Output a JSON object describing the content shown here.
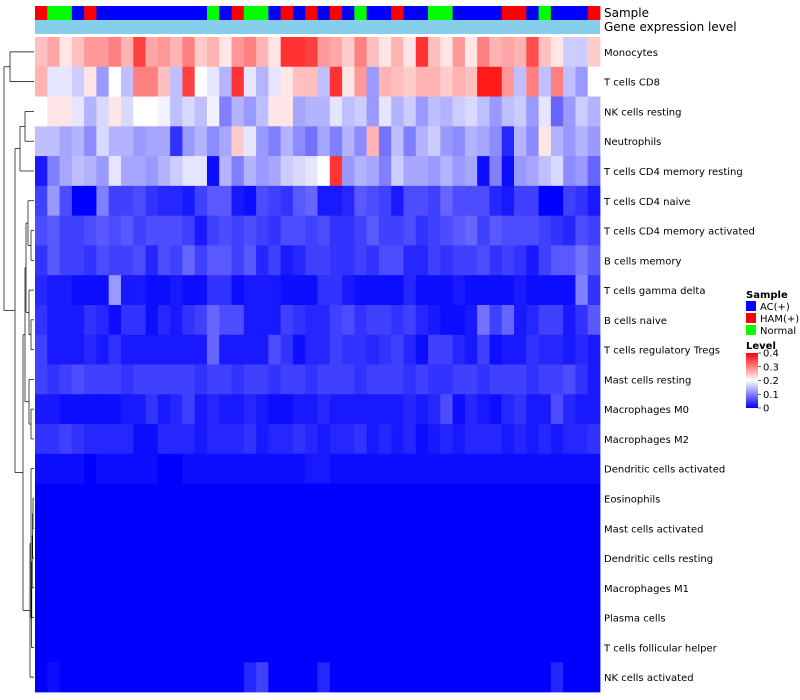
{
  "chart_data": {
    "type": "heatmap",
    "annotation_labels": [
      "Sample",
      "Gene expression level"
    ],
    "sample_groups": [
      "AC(+)",
      "HAM(+)",
      "Normal"
    ],
    "sample_colors": {
      "AC(+)": "#0000ff",
      "HAM(+)": "#ff0000",
      "Normal": "#00ff00"
    },
    "gene_expression_color": "#87ceeb",
    "samples": [
      "HAM(+)",
      "Normal",
      "Normal",
      "AC(+)",
      "HAM(+)",
      "AC(+)",
      "AC(+)",
      "AC(+)",
      "AC(+)",
      "AC(+)",
      "AC(+)",
      "AC(+)",
      "AC(+)",
      "AC(+)",
      "Normal",
      "AC(+)",
      "HAM(+)",
      "Normal",
      "Normal",
      "AC(+)",
      "HAM(+)",
      "AC(+)",
      "HAM(+)",
      "AC(+)",
      "HAM(+)",
      "AC(+)",
      "Normal",
      "AC(+)",
      "AC(+)",
      "HAM(+)",
      "AC(+)",
      "AC(+)",
      "Normal",
      "Normal",
      "AC(+)",
      "AC(+)",
      "AC(+)",
      "AC(+)",
      "HAM(+)",
      "HAM(+)",
      "AC(+)",
      "Normal",
      "AC(+)",
      "AC(+)",
      "AC(+)",
      "HAM(+)"
    ],
    "rows": [
      "Monocytes",
      "T cells CD8",
      "NK cells resting",
      "Neutrophils",
      "T cells CD4 memory resting",
      "T cells CD4 naive",
      "T cells CD4 memory activated",
      "B cells memory",
      "T cells gamma delta",
      "B cells naive",
      "T cells regulatory  Tregs",
      "Mast cells resting",
      "Macrophages M0",
      "Macrophages M2",
      "Dendritic cells activated",
      "Eosinophils",
      "Mast cells activated",
      "Dendritic cells resting",
      "Macrophages M1",
      "Plasma cells",
      "T cells follicular helper",
      "NK cells activated"
    ],
    "values": [
      [
        0.25,
        0.27,
        0.22,
        0.25,
        0.28,
        0.28,
        0.3,
        0.26,
        0.35,
        0.27,
        0.28,
        0.26,
        0.3,
        0.24,
        0.26,
        0.22,
        0.28,
        0.3,
        0.26,
        0.22,
        0.36,
        0.36,
        0.35,
        0.28,
        0.27,
        0.24,
        0.3,
        0.25,
        0.22,
        0.26,
        0.22,
        0.36,
        0.25,
        0.22,
        0.28,
        0.22,
        0.3,
        0.26,
        0.27,
        0.26,
        0.34,
        0.25,
        0.22,
        0.16,
        0.16,
        0.24
      ],
      [
        0.26,
        0.18,
        0.18,
        0.16,
        0.22,
        0.12,
        0.2,
        0.15,
        0.3,
        0.3,
        0.25,
        0.15,
        0.35,
        0.2,
        0.18,
        0.14,
        0.36,
        0.18,
        0.14,
        0.18,
        0.22,
        0.25,
        0.25,
        0.15,
        0.36,
        0.22,
        0.28,
        0.12,
        0.26,
        0.25,
        0.24,
        0.26,
        0.26,
        0.24,
        0.26,
        0.25,
        0.38,
        0.38,
        0.28,
        0.15,
        0.3,
        0.15,
        0.3,
        0.15,
        0.12,
        0.2
      ],
      [
        0.2,
        0.22,
        0.22,
        0.18,
        0.14,
        0.17,
        0.22,
        0.17,
        0.2,
        0.2,
        0.19,
        0.15,
        0.17,
        0.15,
        0.19,
        0.1,
        0.14,
        0.12,
        0.15,
        0.22,
        0.22,
        0.13,
        0.14,
        0.14,
        0.18,
        0.15,
        0.16,
        0.12,
        0.18,
        0.14,
        0.16,
        0.12,
        0.15,
        0.14,
        0.16,
        0.17,
        0.15,
        0.12,
        0.15,
        0.16,
        0.12,
        0.18,
        0.08,
        0.12,
        0.16,
        0.14
      ],
      [
        0.15,
        0.15,
        0.13,
        0.14,
        0.11,
        0.17,
        0.14,
        0.14,
        0.12,
        0.13,
        0.13,
        0.04,
        0.12,
        0.14,
        0.11,
        0.13,
        0.24,
        0.18,
        0.12,
        0.1,
        0.14,
        0.11,
        0.09,
        0.13,
        0.1,
        0.14,
        0.11,
        0.26,
        0.09,
        0.15,
        0.1,
        0.14,
        0.16,
        0.12,
        0.11,
        0.14,
        0.13,
        0.11,
        0.03,
        0.14,
        0.11,
        0.22,
        0.14,
        0.12,
        0.14,
        0.12
      ],
      [
        0.02,
        0.1,
        0.13,
        0.15,
        0.14,
        0.12,
        0.18,
        0.13,
        0.13,
        0.12,
        0.14,
        0.16,
        0.18,
        0.18,
        0.01,
        0.14,
        0.1,
        0.14,
        0.12,
        0.13,
        0.16,
        0.17,
        0.18,
        0.2,
        0.36,
        0.12,
        0.14,
        0.13,
        0.1,
        0.16,
        0.13,
        0.13,
        0.12,
        0.14,
        0.12,
        0.13,
        0.01,
        0.1,
        0.01,
        0.12,
        0.13,
        0.15,
        0.17,
        0.11,
        0.12,
        0.08
      ],
      [
        0.05,
        0.12,
        0.06,
        0.0,
        0.0,
        0.1,
        0.05,
        0.05,
        0.06,
        0.04,
        0.03,
        0.03,
        0.02,
        0.05,
        0.07,
        0.07,
        0.02,
        0.01,
        0.06,
        0.05,
        0.04,
        0.07,
        0.08,
        0.02,
        0.02,
        0.03,
        0.07,
        0.06,
        0.05,
        0.02,
        0.06,
        0.06,
        0.05,
        0.08,
        0.06,
        0.06,
        0.06,
        0.03,
        0.02,
        0.05,
        0.05,
        0.0,
        0.0,
        0.05,
        0.04,
        0.02
      ],
      [
        0.06,
        0.07,
        0.05,
        0.05,
        0.06,
        0.07,
        0.06,
        0.07,
        0.05,
        0.06,
        0.06,
        0.06,
        0.05,
        0.02,
        0.05,
        0.06,
        0.05,
        0.06,
        0.05,
        0.04,
        0.06,
        0.06,
        0.05,
        0.06,
        0.04,
        0.04,
        0.05,
        0.07,
        0.05,
        0.05,
        0.06,
        0.04,
        0.05,
        0.06,
        0.07,
        0.08,
        0.05,
        0.07,
        0.06,
        0.06,
        0.06,
        0.05,
        0.04,
        0.03,
        0.06,
        0.05
      ],
      [
        0.04,
        0.07,
        0.05,
        0.05,
        0.04,
        0.06,
        0.05,
        0.05,
        0.06,
        0.03,
        0.06,
        0.05,
        0.08,
        0.05,
        0.07,
        0.07,
        0.05,
        0.07,
        0.03,
        0.05,
        0.02,
        0.03,
        0.05,
        0.05,
        0.04,
        0.04,
        0.05,
        0.04,
        0.06,
        0.06,
        0.03,
        0.03,
        0.05,
        0.04,
        0.05,
        0.05,
        0.06,
        0.04,
        0.05,
        0.04,
        0.02,
        0.05,
        0.07,
        0.07,
        0.09,
        0.07
      ],
      [
        0.03,
        0.02,
        0.02,
        0.01,
        0.01,
        0.01,
        0.12,
        0.02,
        0.02,
        0.01,
        0.01,
        0.02,
        0.01,
        0.01,
        0.04,
        0.04,
        0.01,
        0.02,
        0.02,
        0.02,
        0.01,
        0.01,
        0.01,
        0.04,
        0.04,
        0.02,
        0.01,
        0.01,
        0.01,
        0.01,
        0.03,
        0.01,
        0.01,
        0.01,
        0.02,
        0.01,
        0.01,
        0.01,
        0.01,
        0.02,
        0.01,
        0.01,
        0.01,
        0.01,
        0.1,
        0.04
      ],
      [
        0.04,
        0.02,
        0.02,
        0.02,
        0.04,
        0.03,
        0.01,
        0.04,
        0.04,
        0.01,
        0.03,
        0.02,
        0.04,
        0.05,
        0.08,
        0.06,
        0.06,
        0.02,
        0.02,
        0.02,
        0.05,
        0.04,
        0.03,
        0.03,
        0.05,
        0.06,
        0.04,
        0.05,
        0.05,
        0.04,
        0.05,
        0.03,
        0.02,
        0.01,
        0.01,
        0.02,
        0.09,
        0.05,
        0.08,
        0.02,
        0.03,
        0.05,
        0.05,
        0.02,
        0.04,
        0.07
      ],
      [
        0.05,
        0.02,
        0.02,
        0.02,
        0.03,
        0.02,
        0.04,
        0.02,
        0.02,
        0.02,
        0.02,
        0.02,
        0.02,
        0.02,
        0.08,
        0.02,
        0.02,
        0.02,
        0.02,
        0.06,
        0.04,
        0.01,
        0.03,
        0.03,
        0.05,
        0.04,
        0.04,
        0.03,
        0.04,
        0.05,
        0.03,
        0.01,
        0.05,
        0.05,
        0.03,
        0.02,
        0.05,
        0.01,
        0.02,
        0.02,
        0.04,
        0.03,
        0.03,
        0.02,
        0.03,
        0.02
      ],
      [
        0.05,
        0.04,
        0.05,
        0.06,
        0.05,
        0.05,
        0.05,
        0.04,
        0.05,
        0.05,
        0.05,
        0.05,
        0.05,
        0.04,
        0.05,
        0.05,
        0.04,
        0.05,
        0.05,
        0.04,
        0.05,
        0.05,
        0.04,
        0.05,
        0.05,
        0.05,
        0.04,
        0.05,
        0.05,
        0.05,
        0.04,
        0.05,
        0.04,
        0.04,
        0.05,
        0.05,
        0.04,
        0.05,
        0.05,
        0.05,
        0.04,
        0.05,
        0.05,
        0.06,
        0.04,
        0.02
      ],
      [
        0.02,
        0.02,
        0.01,
        0.01,
        0.01,
        0.01,
        0.01,
        0.02,
        0.02,
        0.04,
        0.02,
        0.03,
        0.05,
        0.02,
        0.03,
        0.02,
        0.02,
        0.03,
        0.02,
        0.01,
        0.01,
        0.02,
        0.02,
        0.03,
        0.02,
        0.02,
        0.02,
        0.02,
        0.02,
        0.02,
        0.03,
        0.02,
        0.03,
        0.06,
        0.01,
        0.03,
        0.02,
        0.01,
        0.03,
        0.04,
        0.02,
        0.02,
        0.06,
        0.03,
        0.02,
        0.02
      ],
      [
        0.04,
        0.04,
        0.05,
        0.04,
        0.03,
        0.03,
        0.03,
        0.03,
        0.01,
        0.01,
        0.03,
        0.03,
        0.03,
        0.02,
        0.03,
        0.03,
        0.03,
        0.04,
        0.02,
        0.03,
        0.03,
        0.04,
        0.03,
        0.02,
        0.03,
        0.03,
        0.04,
        0.02,
        0.03,
        0.02,
        0.03,
        0.01,
        0.02,
        0.03,
        0.02,
        0.03,
        0.03,
        0.03,
        0.02,
        0.03,
        0.02,
        0.03,
        0.02,
        0.03,
        0.03,
        0.04
      ],
      [
        0.01,
        0.01,
        0.01,
        0.01,
        0.0,
        0.01,
        0.01,
        0.01,
        0.01,
        0.01,
        0.0,
        0.0,
        0.01,
        0.01,
        0.01,
        0.01,
        0.01,
        0.01,
        0.01,
        0.01,
        0.01,
        0.01,
        0.02,
        0.02,
        0.01,
        0.01,
        0.01,
        0.01,
        0.01,
        0.01,
        0.01,
        0.01,
        0.01,
        0.01,
        0.01,
        0.01,
        0.01,
        0.01,
        0.01,
        0.01,
        0.01,
        0.01,
        0.01,
        0.01,
        0.01,
        0.01
      ],
      [
        0.0,
        0.0,
        0.0,
        0.0,
        0.0,
        0.0,
        0.0,
        0.0,
        0.0,
        0.0,
        0.0,
        0.0,
        0.0,
        0.0,
        0.0,
        0.0,
        0.0,
        0.0,
        0.0,
        0.0,
        0.0,
        0.0,
        0.0,
        0.0,
        0.0,
        0.0,
        0.0,
        0.0,
        0.0,
        0.0,
        0.0,
        0.0,
        0.0,
        0.0,
        0.0,
        0.0,
        0.0,
        0.0,
        0.0,
        0.0,
        0.0,
        0.0,
        0.0,
        0.0,
        0.0,
        0.0
      ],
      [
        0.0,
        0.0,
        0.0,
        0.0,
        0.0,
        0.0,
        0.0,
        0.0,
        0.0,
        0.0,
        0.0,
        0.0,
        0.0,
        0.0,
        0.0,
        0.0,
        0.0,
        0.0,
        0.0,
        0.0,
        0.0,
        0.0,
        0.0,
        0.0,
        0.0,
        0.0,
        0.0,
        0.0,
        0.0,
        0.0,
        0.0,
        0.0,
        0.0,
        0.0,
        0.0,
        0.0,
        0.0,
        0.0,
        0.0,
        0.0,
        0.0,
        0.0,
        0.0,
        0.0,
        0.0,
        0.0
      ],
      [
        0.0,
        0.0,
        0.0,
        0.0,
        0.0,
        0.0,
        0.0,
        0.0,
        0.0,
        0.0,
        0.0,
        0.0,
        0.0,
        0.0,
        0.0,
        0.0,
        0.0,
        0.0,
        0.0,
        0.0,
        0.0,
        0.0,
        0.0,
        0.0,
        0.0,
        0.0,
        0.0,
        0.0,
        0.0,
        0.0,
        0.0,
        0.0,
        0.0,
        0.0,
        0.0,
        0.0,
        0.0,
        0.0,
        0.0,
        0.0,
        0.0,
        0.0,
        0.0,
        0.0,
        0.0,
        0.0
      ],
      [
        0.0,
        0.0,
        0.0,
        0.0,
        0.0,
        0.0,
        0.0,
        0.0,
        0.0,
        0.0,
        0.0,
        0.0,
        0.0,
        0.0,
        0.0,
        0.0,
        0.0,
        0.0,
        0.0,
        0.0,
        0.0,
        0.0,
        0.0,
        0.0,
        0.0,
        0.0,
        0.0,
        0.0,
        0.0,
        0.0,
        0.0,
        0.0,
        0.0,
        0.0,
        0.0,
        0.0,
        0.0,
        0.0,
        0.0,
        0.0,
        0.0,
        0.0,
        0.0,
        0.0,
        0.0,
        0.0
      ],
      [
        0.0,
        0.0,
        0.0,
        0.0,
        0.0,
        0.0,
        0.0,
        0.0,
        0.0,
        0.0,
        0.0,
        0.0,
        0.0,
        0.0,
        0.0,
        0.0,
        0.0,
        0.0,
        0.0,
        0.0,
        0.0,
        0.0,
        0.0,
        0.0,
        0.0,
        0.0,
        0.0,
        0.0,
        0.0,
        0.0,
        0.0,
        0.0,
        0.0,
        0.0,
        0.0,
        0.0,
        0.0,
        0.0,
        0.0,
        0.0,
        0.0,
        0.0,
        0.0,
        0.0,
        0.0,
        0.0
      ],
      [
        0.0,
        0.0,
        0.0,
        0.0,
        0.0,
        0.0,
        0.0,
        0.0,
        0.0,
        0.0,
        0.0,
        0.0,
        0.0,
        0.0,
        0.0,
        0.0,
        0.0,
        0.0,
        0.0,
        0.0,
        0.0,
        0.0,
        0.0,
        0.0,
        0.0,
        0.0,
        0.0,
        0.0,
        0.0,
        0.0,
        0.0,
        0.0,
        0.0,
        0.0,
        0.0,
        0.0,
        0.0,
        0.0,
        0.0,
        0.0,
        0.0,
        0.0,
        0.0,
        0.0,
        0.0,
        0.0
      ],
      [
        0.0,
        0.01,
        0.0,
        0.0,
        0.0,
        0.0,
        0.0,
        0.0,
        0.0,
        0.0,
        0.0,
        0.0,
        0.0,
        0.0,
        0.0,
        0.0,
        0.0,
        0.03,
        0.05,
        0.0,
        0.0,
        0.0,
        0.0,
        0.03,
        0.0,
        0.0,
        0.0,
        0.0,
        0.0,
        0.0,
        0.0,
        0.0,
        0.0,
        0.0,
        0.0,
        0.0,
        0.0,
        0.0,
        0.0,
        0.0,
        0.0,
        0.0,
        0.03,
        0.0,
        0.0,
        0.0
      ]
    ],
    "color_scale": {
      "min": 0,
      "max": 0.4,
      "low": "#0000ff",
      "mid": "#ffffff",
      "high": "#ff0000"
    },
    "legend": {
      "sample_title": "Sample",
      "level_title": "Level",
      "level_ticks": [
        "0.4",
        "0.3",
        "0.2",
        "0.1",
        "0"
      ],
      "placement": "right"
    },
    "row_dendrogram": true
  }
}
